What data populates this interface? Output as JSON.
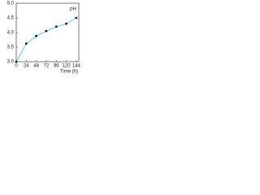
{
  "chart_data": {
    "type": "line",
    "y_label": "pH",
    "x_label": "Time (h)",
    "x": [
      0,
      24,
      48,
      72,
      96,
      120,
      144
    ],
    "values": [
      3.0,
      3.62,
      3.88,
      4.05,
      4.2,
      4.3,
      4.5
    ],
    "color": "#5bc8e8",
    "marker_color": "#1a1a1a",
    "xlim": [
      0,
      150
    ],
    "xticks": [
      0,
      24,
      48,
      72,
      96,
      120,
      144
    ],
    "ylim": [
      3,
      5
    ],
    "yticks": [
      {
        "value": 3,
        "label": "3.0"
      },
      3.5,
      {
        "value": 4,
        "label": "4.0"
      },
      4.5,
      {
        "value": 5,
        "label": "5.0"
      }
    ],
    "grid": false
  }
}
